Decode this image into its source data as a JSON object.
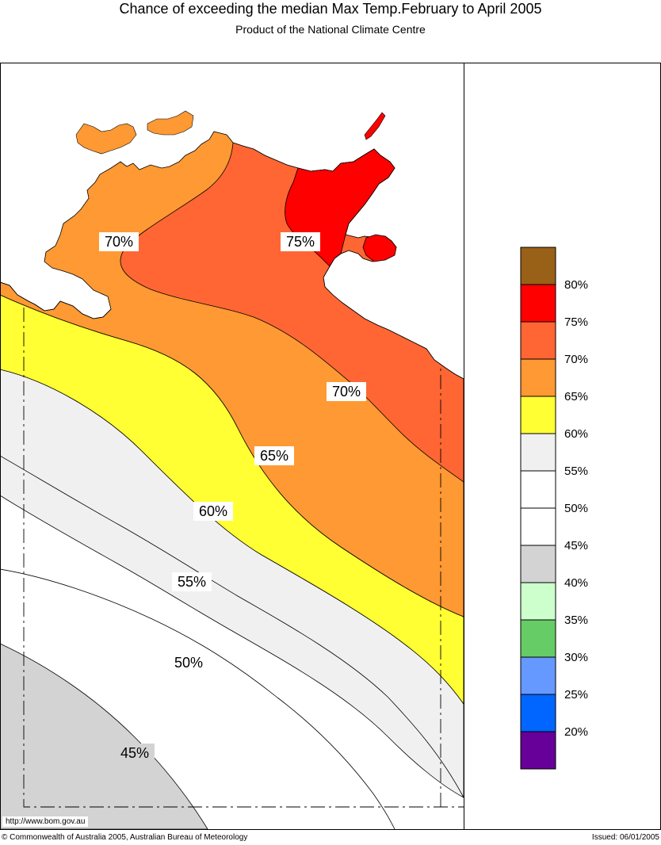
{
  "header": {
    "title": "Chance of exceeding the median Max Temp.February to April 2005",
    "subtitle": "Product of the National Climate Centre"
  },
  "map": {
    "contour_labels": [
      {
        "id": "70-west",
        "text": "70%"
      },
      {
        "id": "75",
        "text": "75%"
      },
      {
        "id": "70-east",
        "text": "70%"
      },
      {
        "id": "65",
        "text": "65%"
      },
      {
        "id": "60",
        "text": "60%"
      },
      {
        "id": "55",
        "text": "55%"
      },
      {
        "id": "50",
        "text": "50%"
      },
      {
        "id": "45",
        "text": "45%"
      }
    ],
    "zone_colors": {
      "z75_80": "#ff0000",
      "z70_75": "#ff6633",
      "z65_70": "#ff9933",
      "z60_65": "#ffff33",
      "z55_60": "#f0f0f0",
      "z50_55": "#ffffff",
      "z45_50": "#ffffff",
      "z40_45": "#d3d3d3"
    }
  },
  "legend": {
    "swatch_colors": [
      "#996017",
      "#ff0000",
      "#ff6633",
      "#ff9933",
      "#ffff33",
      "#f0f0f0",
      "#ffffff",
      "#ffffff",
      "#d3d3d3",
      "#ccffcc",
      "#66cc66",
      "#6699ff",
      "#0066ff",
      "#660099"
    ],
    "labels": [
      "80%",
      "75%",
      "70%",
      "65%",
      "60%",
      "55%",
      "50%",
      "45%",
      "40%",
      "35%",
      "30%",
      "25%",
      "20%"
    ]
  },
  "footer": {
    "url": "http://www.bom.gov.au",
    "copyright": "© Commonwealth of Australia 2005, Australian Bureau of Meteorology",
    "issued": "Issued: 06/01/2005"
  }
}
